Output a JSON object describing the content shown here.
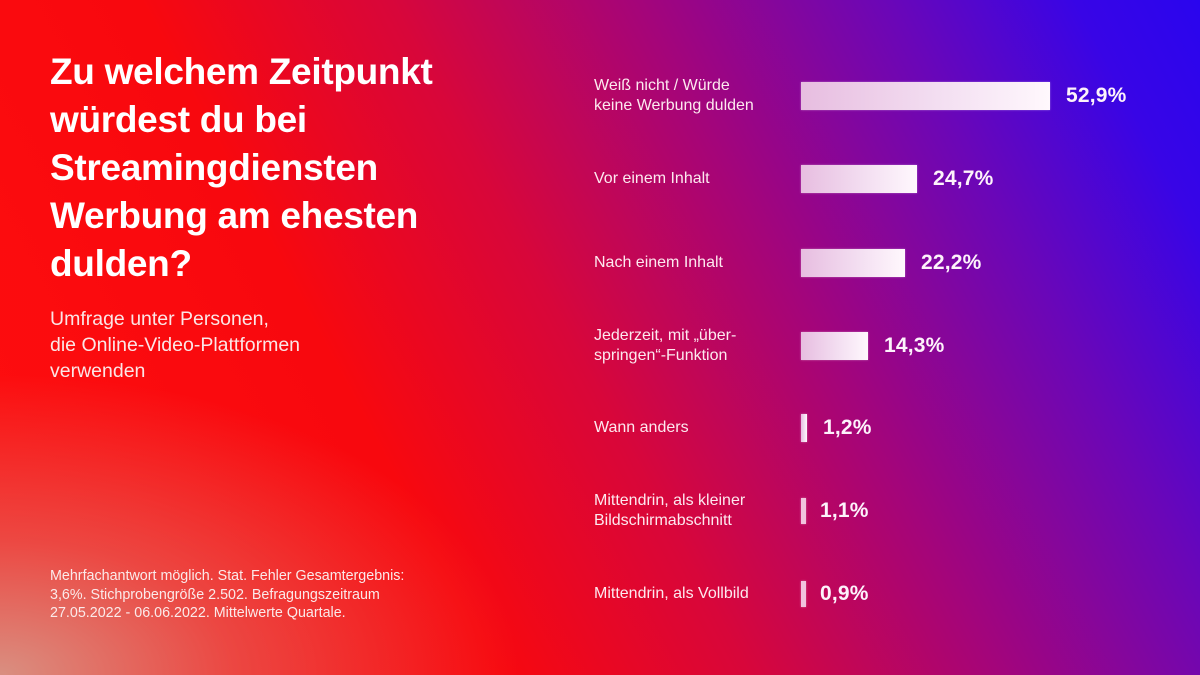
{
  "title": "Zu welchem Zeitpunkt\nwürdest du bei\nStreamingdiensten\nWerbung am ehesten\ndulden?",
  "subtitle": "Umfrage unter Personen,\ndie Online-Video-Plattformen\nverwenden",
  "footnote": "Mehrfachantwort möglich. Stat. Fehler Gesamtergebnis:\n3,6%. Stichprobengröße 2.502. Befragungszeitraum\n27.05.2022 - 06.06.2022. Mittelwerte Quartale.",
  "colors": {
    "background_left": "#ff0f0f",
    "background_right": "#2a05ee",
    "bar_start": "#e7bde0",
    "bar_end": "#fff8fd",
    "text": "#ffffff"
  },
  "chart_data": {
    "type": "bar",
    "orientation": "horizontal",
    "title": "Zu welchem Zeitpunkt würdest du bei Streamingdiensten Werbung am ehesten dulden?",
    "subtitle": "Umfrage unter Personen, die Online-Video-Plattformen verwenden",
    "unit": "%",
    "xlim": [
      0,
      52.9
    ],
    "grid": false,
    "legend": "none",
    "categories": [
      "Weiß nicht / Würde\nkeine Werbung dulden",
      "Vor einem Inhalt",
      "Nach einem Inhalt",
      "Jederzeit, mit „über-\nspringen“-Funktion",
      "Wann anders",
      "Mittendrin, als kleiner\nBildschirmabschnitt",
      "Mittendrin, als Vollbild"
    ],
    "values": [
      52.9,
      24.7,
      22.2,
      14.3,
      1.2,
      1.1,
      0.9
    ],
    "value_labels": [
      "52,9%",
      "24,7%",
      "22,2%",
      "14,3%",
      "1,2%",
      "1,1%",
      "0,9%"
    ]
  }
}
